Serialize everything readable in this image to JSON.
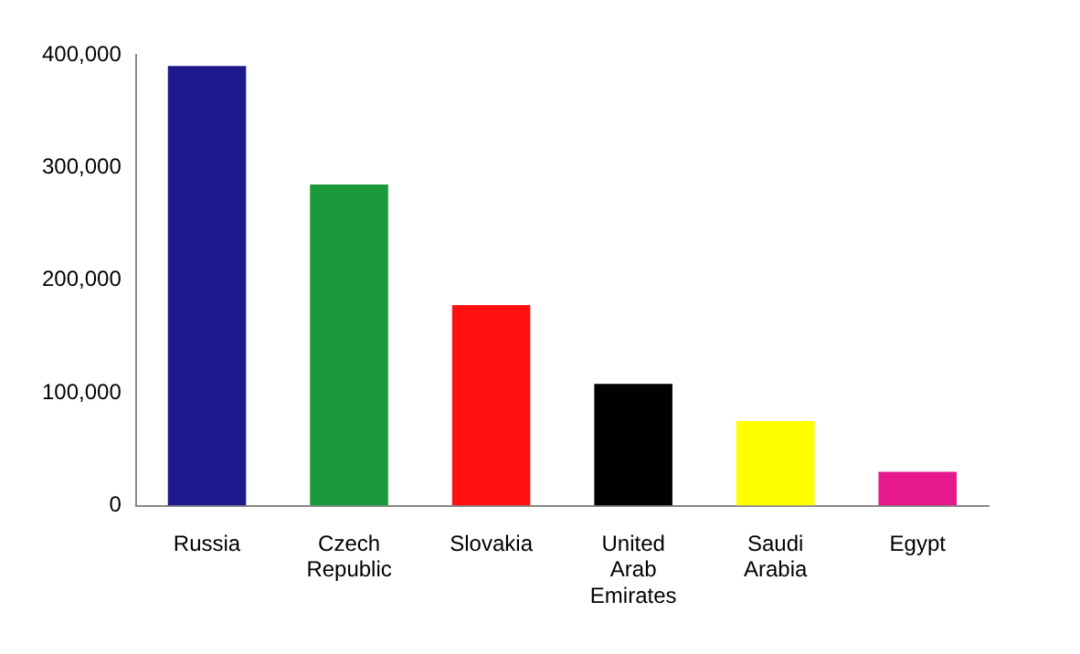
{
  "chart_data": {
    "type": "bar",
    "categories": [
      "Russia",
      "Czech Republic",
      "Slovakia",
      "United Arab Emirates",
      "Saudi Arabia",
      "Egypt"
    ],
    "values": [
      390000,
      285000,
      178000,
      108000,
      75000,
      30000
    ],
    "colors": [
      "#1c1a8c",
      "#1a9a3a",
      "#ff1010",
      "#000000",
      "#ffff00",
      "#e6198c"
    ],
    "ylim": [
      0,
      400000
    ],
    "yticks": [
      {
        "value": 0,
        "label": "0"
      },
      {
        "value": 100000,
        "label": "100,000"
      },
      {
        "value": 200000,
        "label": "200,000"
      },
      {
        "value": 300000,
        "label": "300,000"
      },
      {
        "value": 400000,
        "label": "400,000"
      }
    ],
    "grid": false,
    "legend": false
  }
}
